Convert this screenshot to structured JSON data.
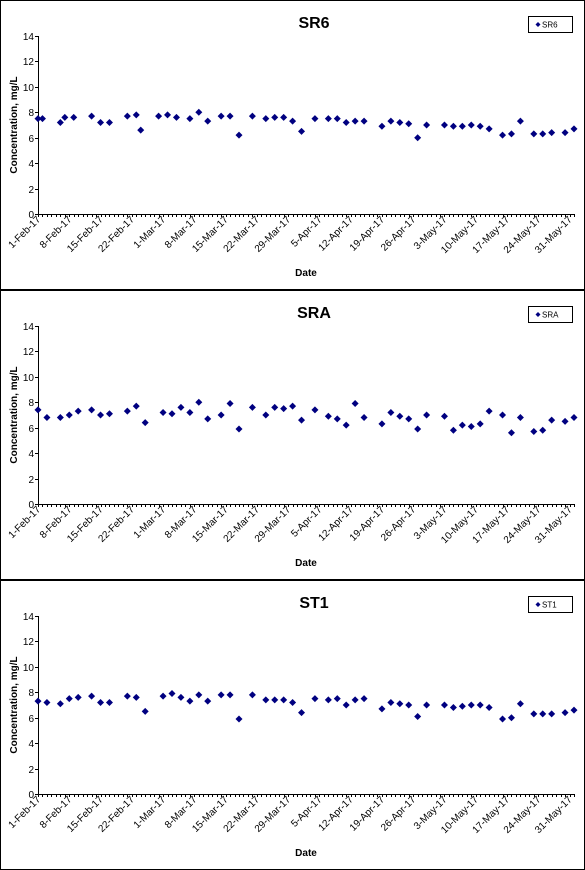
{
  "chart_data": [
    {
      "type": "scatter",
      "title": "SR6",
      "xlabel": "Date",
      "ylabel": "Concentration, mg/L",
      "ylim": [
        0,
        14
      ],
      "yticks": [
        0,
        2,
        4,
        6,
        8,
        10,
        12,
        14
      ],
      "xlim": [
        "2017-02-01",
        "2017-05-31"
      ],
      "xtick_labels": [
        "1-Feb-17",
        "8-Feb-17",
        "15-Feb-17",
        "22-Feb-17",
        "1-Mar-17",
        "8-Mar-17",
        "15-Mar-17",
        "22-Mar-17",
        "29-Mar-17",
        "5-Apr-17",
        "12-Apr-17",
        "19-Apr-17",
        "26-Apr-17",
        "3-May-17",
        "10-May-17",
        "17-May-17",
        "24-May-17",
        "31-May-17"
      ],
      "grid": false,
      "legend_position": "top-right",
      "marker_color": "#000080",
      "series": [
        {
          "name": "SR6",
          "points": [
            {
              "x": "2017-02-01",
              "y": 7.5
            },
            {
              "x": "2017-02-02",
              "y": 7.5
            },
            {
              "x": "2017-02-06",
              "y": 7.2
            },
            {
              "x": "2017-02-07",
              "y": 7.6
            },
            {
              "x": "2017-02-09",
              "y": 7.6
            },
            {
              "x": "2017-02-13",
              "y": 7.7
            },
            {
              "x": "2017-02-15",
              "y": 7.2
            },
            {
              "x": "2017-02-17",
              "y": 7.2
            },
            {
              "x": "2017-02-21",
              "y": 7.7
            },
            {
              "x": "2017-02-23",
              "y": 7.8
            },
            {
              "x": "2017-02-24",
              "y": 6.6
            },
            {
              "x": "2017-02-28",
              "y": 7.7
            },
            {
              "x": "2017-03-02",
              "y": 7.8
            },
            {
              "x": "2017-03-04",
              "y": 7.6
            },
            {
              "x": "2017-03-07",
              "y": 7.5
            },
            {
              "x": "2017-03-09",
              "y": 8.0
            },
            {
              "x": "2017-03-11",
              "y": 7.3
            },
            {
              "x": "2017-03-14",
              "y": 7.7
            },
            {
              "x": "2017-03-16",
              "y": 7.7
            },
            {
              "x": "2017-03-18",
              "y": 6.2
            },
            {
              "x": "2017-03-21",
              "y": 7.7
            },
            {
              "x": "2017-03-24",
              "y": 7.5
            },
            {
              "x": "2017-03-26",
              "y": 7.6
            },
            {
              "x": "2017-03-28",
              "y": 7.6
            },
            {
              "x": "2017-03-30",
              "y": 7.3
            },
            {
              "x": "2017-04-01",
              "y": 6.5
            },
            {
              "x": "2017-04-04",
              "y": 7.5
            },
            {
              "x": "2017-04-07",
              "y": 7.5
            },
            {
              "x": "2017-04-09",
              "y": 7.5
            },
            {
              "x": "2017-04-11",
              "y": 7.2
            },
            {
              "x": "2017-04-13",
              "y": 7.3
            },
            {
              "x": "2017-04-15",
              "y": 7.3
            },
            {
              "x": "2017-04-19",
              "y": 6.9
            },
            {
              "x": "2017-04-21",
              "y": 7.3
            },
            {
              "x": "2017-04-23",
              "y": 7.2
            },
            {
              "x": "2017-04-25",
              "y": 7.1
            },
            {
              "x": "2017-04-27",
              "y": 6.0
            },
            {
              "x": "2017-04-29",
              "y": 7.0
            },
            {
              "x": "2017-05-03",
              "y": 7.0
            },
            {
              "x": "2017-05-05",
              "y": 6.9
            },
            {
              "x": "2017-05-07",
              "y": 6.9
            },
            {
              "x": "2017-05-09",
              "y": 7.0
            },
            {
              "x": "2017-05-11",
              "y": 6.9
            },
            {
              "x": "2017-05-13",
              "y": 6.7
            },
            {
              "x": "2017-05-16",
              "y": 6.2
            },
            {
              "x": "2017-05-18",
              "y": 6.3
            },
            {
              "x": "2017-05-20",
              "y": 7.3
            },
            {
              "x": "2017-05-23",
              "y": 6.3
            },
            {
              "x": "2017-05-25",
              "y": 6.3
            },
            {
              "x": "2017-05-27",
              "y": 6.4
            },
            {
              "x": "2017-05-30",
              "y": 6.4
            },
            {
              "x": "2017-06-01",
              "y": 6.7
            }
          ]
        }
      ]
    },
    {
      "type": "scatter",
      "title": "SRA",
      "xlabel": "Date",
      "ylabel": "Concentration, mg/L",
      "ylim": [
        0,
        14
      ],
      "yticks": [
        0,
        2,
        4,
        6,
        8,
        10,
        12,
        14
      ],
      "xlim": [
        "2017-02-01",
        "2017-05-31"
      ],
      "xtick_labels": [
        "1-Feb-17",
        "8-Feb-17",
        "15-Feb-17",
        "22-Feb-17",
        "1-Mar-17",
        "8-Mar-17",
        "15-Mar-17",
        "22-Mar-17",
        "29-Mar-17",
        "5-Apr-17",
        "12-Apr-17",
        "19-Apr-17",
        "26-Apr-17",
        "3-May-17",
        "10-May-17",
        "17-May-17",
        "24-May-17",
        "31-May-17"
      ],
      "grid": false,
      "legend_position": "top-right",
      "marker_color": "#000080",
      "series": [
        {
          "name": "SRA",
          "points": [
            {
              "x": "2017-02-01",
              "y": 7.4
            },
            {
              "x": "2017-02-03",
              "y": 6.8
            },
            {
              "x": "2017-02-06",
              "y": 6.8
            },
            {
              "x": "2017-02-08",
              "y": 7.0
            },
            {
              "x": "2017-02-10",
              "y": 7.3
            },
            {
              "x": "2017-02-13",
              "y": 7.4
            },
            {
              "x": "2017-02-15",
              "y": 7.0
            },
            {
              "x": "2017-02-17",
              "y": 7.1
            },
            {
              "x": "2017-02-21",
              "y": 7.3
            },
            {
              "x": "2017-02-23",
              "y": 7.7
            },
            {
              "x": "2017-02-25",
              "y": 6.4
            },
            {
              "x": "2017-03-01",
              "y": 7.2
            },
            {
              "x": "2017-03-03",
              "y": 7.1
            },
            {
              "x": "2017-03-05",
              "y": 7.6
            },
            {
              "x": "2017-03-07",
              "y": 7.2
            },
            {
              "x": "2017-03-09",
              "y": 8.0
            },
            {
              "x": "2017-03-11",
              "y": 6.7
            },
            {
              "x": "2017-03-14",
              "y": 7.0
            },
            {
              "x": "2017-03-16",
              "y": 7.9
            },
            {
              "x": "2017-03-18",
              "y": 5.9
            },
            {
              "x": "2017-03-21",
              "y": 7.6
            },
            {
              "x": "2017-03-24",
              "y": 7.0
            },
            {
              "x": "2017-03-26",
              "y": 7.6
            },
            {
              "x": "2017-03-28",
              "y": 7.5
            },
            {
              "x": "2017-03-30",
              "y": 7.7
            },
            {
              "x": "2017-04-01",
              "y": 6.6
            },
            {
              "x": "2017-04-04",
              "y": 7.4
            },
            {
              "x": "2017-04-07",
              "y": 6.9
            },
            {
              "x": "2017-04-09",
              "y": 6.7
            },
            {
              "x": "2017-04-11",
              "y": 6.2
            },
            {
              "x": "2017-04-13",
              "y": 7.9
            },
            {
              "x": "2017-04-15",
              "y": 6.8
            },
            {
              "x": "2017-04-19",
              "y": 6.3
            },
            {
              "x": "2017-04-21",
              "y": 7.2
            },
            {
              "x": "2017-04-23",
              "y": 6.9
            },
            {
              "x": "2017-04-25",
              "y": 6.7
            },
            {
              "x": "2017-04-27",
              "y": 5.9
            },
            {
              "x": "2017-04-29",
              "y": 7.0
            },
            {
              "x": "2017-05-03",
              "y": 6.9
            },
            {
              "x": "2017-05-05",
              "y": 5.8
            },
            {
              "x": "2017-05-07",
              "y": 6.2
            },
            {
              "x": "2017-05-09",
              "y": 6.1
            },
            {
              "x": "2017-05-11",
              "y": 6.3
            },
            {
              "x": "2017-05-13",
              "y": 7.3
            },
            {
              "x": "2017-05-16",
              "y": 7.0
            },
            {
              "x": "2017-05-18",
              "y": 5.6
            },
            {
              "x": "2017-05-20",
              "y": 6.8
            },
            {
              "x": "2017-05-23",
              "y": 5.7
            },
            {
              "x": "2017-05-25",
              "y": 5.8
            },
            {
              "x": "2017-05-27",
              "y": 6.6
            },
            {
              "x": "2017-05-30",
              "y": 6.5
            },
            {
              "x": "2017-06-01",
              "y": 6.8
            }
          ]
        }
      ]
    },
    {
      "type": "scatter",
      "title": "ST1",
      "xlabel": "Date",
      "ylabel": "Concentration, mg/L",
      "ylim": [
        0,
        14
      ],
      "yticks": [
        0,
        2,
        4,
        6,
        8,
        10,
        12,
        14
      ],
      "xlim": [
        "2017-02-01",
        "2017-05-31"
      ],
      "xtick_labels": [
        "1-Feb-17",
        "8-Feb-17",
        "15-Feb-17",
        "22-Feb-17",
        "1-Mar-17",
        "8-Mar-17",
        "15-Mar-17",
        "22-Mar-17",
        "29-Mar-17",
        "5-Apr-17",
        "12-Apr-17",
        "19-Apr-17",
        "26-Apr-17",
        "3-May-17",
        "10-May-17",
        "17-May-17",
        "24-May-17",
        "31-May-17"
      ],
      "grid": false,
      "legend_position": "top-right",
      "marker_color": "#000080",
      "series": [
        {
          "name": "ST1",
          "points": [
            {
              "x": "2017-02-01",
              "y": 7.3
            },
            {
              "x": "2017-02-03",
              "y": 7.2
            },
            {
              "x": "2017-02-06",
              "y": 7.1
            },
            {
              "x": "2017-02-08",
              "y": 7.5
            },
            {
              "x": "2017-02-10",
              "y": 7.6
            },
            {
              "x": "2017-02-13",
              "y": 7.7
            },
            {
              "x": "2017-02-15",
              "y": 7.2
            },
            {
              "x": "2017-02-17",
              "y": 7.2
            },
            {
              "x": "2017-02-21",
              "y": 7.7
            },
            {
              "x": "2017-02-23",
              "y": 7.6
            },
            {
              "x": "2017-02-25",
              "y": 6.5
            },
            {
              "x": "2017-03-01",
              "y": 7.7
            },
            {
              "x": "2017-03-03",
              "y": 7.9
            },
            {
              "x": "2017-03-05",
              "y": 7.6
            },
            {
              "x": "2017-03-07",
              "y": 7.3
            },
            {
              "x": "2017-03-09",
              "y": 7.8
            },
            {
              "x": "2017-03-11",
              "y": 7.3
            },
            {
              "x": "2017-03-14",
              "y": 7.8
            },
            {
              "x": "2017-03-16",
              "y": 7.8
            },
            {
              "x": "2017-03-18",
              "y": 5.9
            },
            {
              "x": "2017-03-21",
              "y": 7.8
            },
            {
              "x": "2017-03-24",
              "y": 7.4
            },
            {
              "x": "2017-03-26",
              "y": 7.4
            },
            {
              "x": "2017-03-28",
              "y": 7.4
            },
            {
              "x": "2017-03-30",
              "y": 7.2
            },
            {
              "x": "2017-04-01",
              "y": 6.4
            },
            {
              "x": "2017-04-04",
              "y": 7.5
            },
            {
              "x": "2017-04-07",
              "y": 7.4
            },
            {
              "x": "2017-04-09",
              "y": 7.5
            },
            {
              "x": "2017-04-11",
              "y": 7.0
            },
            {
              "x": "2017-04-13",
              "y": 7.4
            },
            {
              "x": "2017-04-15",
              "y": 7.5
            },
            {
              "x": "2017-04-19",
              "y": 6.7
            },
            {
              "x": "2017-04-21",
              "y": 7.2
            },
            {
              "x": "2017-04-23",
              "y": 7.1
            },
            {
              "x": "2017-04-25",
              "y": 7.0
            },
            {
              "x": "2017-04-27",
              "y": 6.1
            },
            {
              "x": "2017-04-29",
              "y": 7.0
            },
            {
              "x": "2017-05-03",
              "y": 7.0
            },
            {
              "x": "2017-05-05",
              "y": 6.8
            },
            {
              "x": "2017-05-07",
              "y": 6.9
            },
            {
              "x": "2017-05-09",
              "y": 7.0
            },
            {
              "x": "2017-05-11",
              "y": 7.0
            },
            {
              "x": "2017-05-13",
              "y": 6.8
            },
            {
              "x": "2017-05-16",
              "y": 5.9
            },
            {
              "x": "2017-05-18",
              "y": 6.0
            },
            {
              "x": "2017-05-20",
              "y": 7.1
            },
            {
              "x": "2017-05-23",
              "y": 6.3
            },
            {
              "x": "2017-05-25",
              "y": 6.3
            },
            {
              "x": "2017-05-27",
              "y": 6.3
            },
            {
              "x": "2017-05-30",
              "y": 6.4
            },
            {
              "x": "2017-06-01",
              "y": 6.6
            }
          ]
        }
      ]
    }
  ]
}
